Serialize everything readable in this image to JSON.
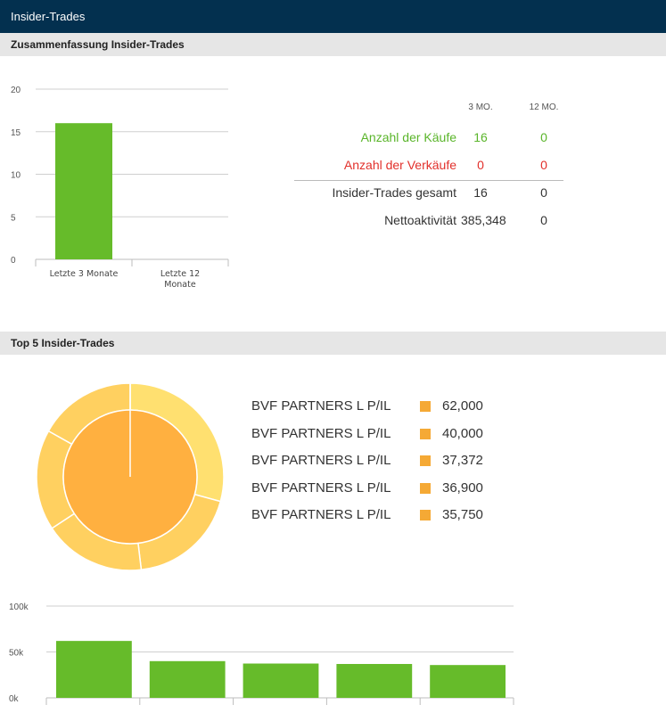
{
  "titlebar": {
    "title": "Insider-Trades"
  },
  "sections": {
    "summary": "Zusammenfassung Insider-Trades",
    "top5": "Top 5 Insider-Trades"
  },
  "summary_table": {
    "col_3mo": "3 MO.",
    "col_12mo": "12 MO.",
    "rows": [
      {
        "label": "Anzahl der Käufe",
        "v3": "16",
        "v12": "0",
        "color": "#5ab52a"
      },
      {
        "label": "Anzahl der Verkäufe",
        "v3": "0",
        "v12": "0",
        "color": "#e2302b"
      },
      {
        "label": "Insider-Trades gesamt",
        "v3": "16",
        "v12": "0",
        "color": "#333333"
      },
      {
        "label": "Nettoaktivität",
        "v3": "385,348",
        "v12": "0",
        "color": "#333333"
      }
    ]
  },
  "top5_legend": [
    {
      "name": "BVF PARTNERS L P/IL",
      "value": "62,000"
    },
    {
      "name": "BVF PARTNERS L P/IL",
      "value": "40,000"
    },
    {
      "name": "BVF PARTNERS L P/IL",
      "value": "37,372"
    },
    {
      "name": "BVF PARTNERS L P/IL",
      "value": "36,900"
    },
    {
      "name": "BVF PARTNERS L P/IL",
      "value": "35,750"
    }
  ],
  "colors": {
    "header_bg": "#03304f",
    "bar_green": "#66bb2a",
    "pie_inner": "#ffb040",
    "pie_outer": "#ffd060",
    "pie_outer_alt": "#ffe070"
  },
  "chart_data": [
    {
      "type": "bar",
      "categories": [
        "Letzte 3 Monate",
        "Letzte 12 Monate"
      ],
      "values": [
        16,
        0
      ],
      "ylim": [
        0,
        20
      ],
      "yticks": [
        0,
        5,
        10,
        15,
        20
      ],
      "grid": true
    },
    {
      "type": "pie",
      "categories": [
        "BVF PARTNERS L P/IL",
        "BVF PARTNERS L P/IL",
        "BVF PARTNERS L P/IL",
        "BVF PARTNERS L P/IL",
        "BVF PARTNERS L P/IL"
      ],
      "values": [
        62000,
        40000,
        37372,
        36900,
        35750
      ],
      "inner_values": [
        16
      ]
    },
    {
      "type": "bar",
      "values": [
        62000,
        40000,
        37372,
        36900,
        35750
      ],
      "ylim": [
        0,
        100000
      ],
      "yticks": [
        0,
        50000,
        100000
      ],
      "ytick_labels": [
        "0k",
        "50k",
        "100k"
      ],
      "grid": true
    }
  ]
}
